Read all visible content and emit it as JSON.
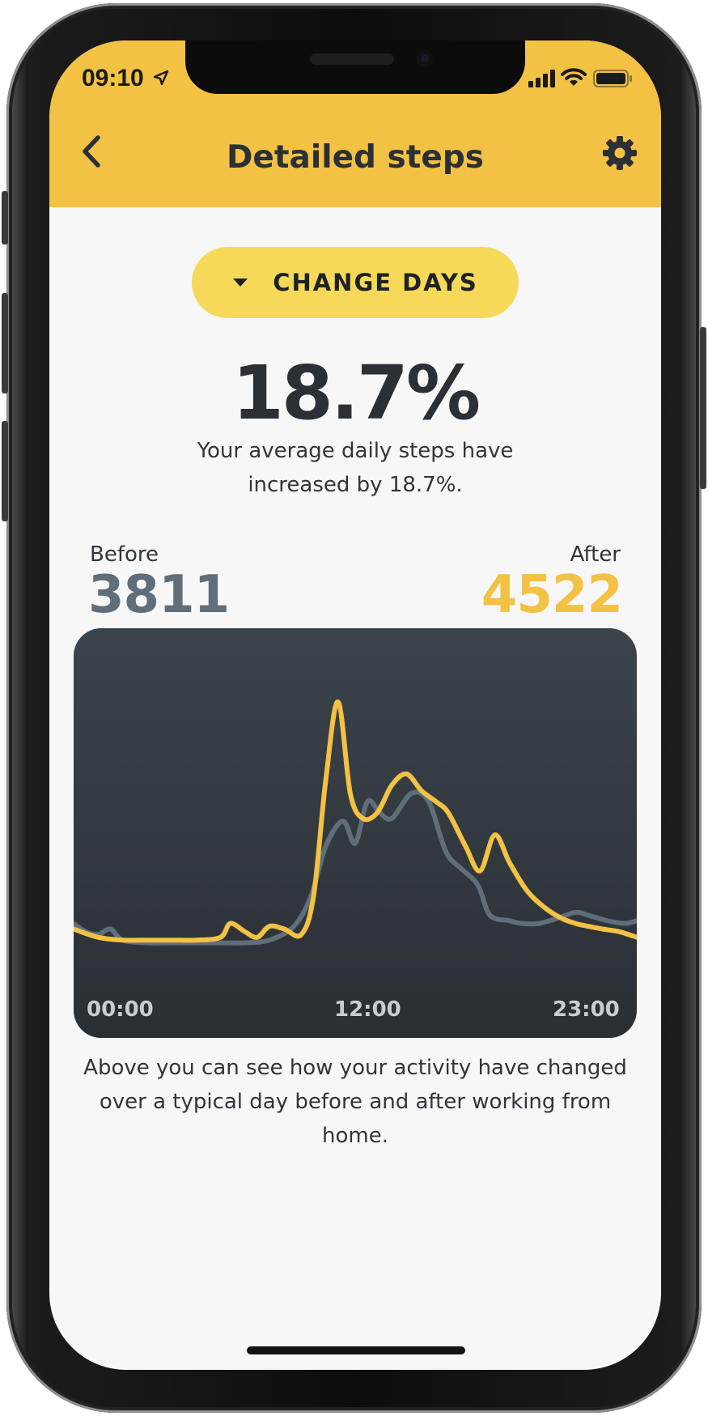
{
  "status_bar": {
    "time": "09:10",
    "icons": [
      "location-arrow-icon",
      "cellular-signal-icon",
      "wifi-icon",
      "battery-icon"
    ]
  },
  "header": {
    "title": "Detailed steps",
    "back_icon": "chevron-left-icon",
    "settings_icon": "gear-icon",
    "background_color": "#f3c143"
  },
  "change_days": {
    "label": "CHANGE DAYS",
    "icon": "caret-down-icon",
    "background_color": "#f7d95a"
  },
  "stats": {
    "percent": "18.7%",
    "summary": "Your average daily steps have increased by 18.7%.",
    "before_label": "Before",
    "before_value": "3811",
    "after_label": "After",
    "after_value": "4522",
    "before_color": "#5e6e7b",
    "after_color": "#f3c143"
  },
  "chart_data": {
    "type": "line",
    "x_ticks": [
      "00:00",
      "12:00",
      "23:00"
    ],
    "x_range": [
      0,
      23
    ],
    "y_range": [
      0,
      100
    ],
    "grid": false,
    "series": [
      {
        "color": "#5e6e7b",
        "x": [
          0,
          0.5,
          1,
          1.5,
          2,
          3,
          4,
          5,
          6,
          7,
          8,
          9,
          9.7,
          10.3,
          11,
          11.5,
          12,
          12.5,
          13,
          13.8,
          14.5,
          15.2,
          15.8,
          16.5,
          17,
          17.8,
          18.3,
          19,
          19.8,
          20.5,
          21,
          21.8,
          22.5,
          23
        ],
        "y": [
          8,
          5,
          4,
          6,
          2,
          1,
          1,
          1,
          1,
          1,
          2,
          7,
          18,
          36,
          45,
          37,
          52,
          48,
          46,
          55,
          52,
          34,
          28,
          22,
          11,
          9,
          8,
          8,
          10,
          12,
          11,
          9,
          8,
          9
        ]
      },
      {
        "color": "#f3c143",
        "x": [
          0,
          1,
          2,
          3,
          4,
          5,
          6,
          6.4,
          7,
          7.5,
          8,
          8.6,
          9.3,
          9.8,
          10.3,
          10.8,
          11.3,
          11.8,
          12.4,
          13,
          13.6,
          14.2,
          14.8,
          15.3,
          16,
          16.6,
          17.2,
          17.8,
          18.5,
          19.2,
          19.9,
          20.5,
          21,
          21.6,
          22.3,
          23
        ],
        "y": [
          6,
          3,
          2,
          2,
          2,
          2,
          3,
          8,
          5,
          3,
          7,
          6,
          4,
          18,
          60,
          88,
          55,
          46,
          48,
          58,
          62,
          56,
          52,
          48,
          36,
          27,
          40,
          30,
          20,
          14,
          10,
          8,
          7,
          6,
          5,
          3
        ]
      }
    ]
  },
  "caption": "Above you can see how your activity have changed over a typical day before and after working from home."
}
